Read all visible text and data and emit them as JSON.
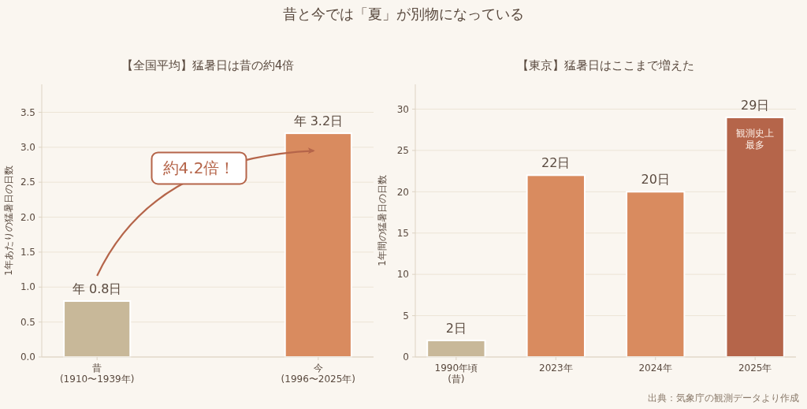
{
  "chart_data": [
    {
      "type": "bar",
      "title": "昔と今では「夏」が別物になっている",
      "subtitle": "【全国平均】猛暑日は昔の約4倍",
      "ylabel": "1年あたりの猛暑日の日数",
      "categories": [
        "昔\n(1910〜1939年)",
        "今\n(1996〜2025年)"
      ],
      "values": [
        0.8,
        3.2
      ],
      "colors": [
        "#c8b899",
        "#d98b5f"
      ],
      "value_labels": [
        "年 0.8日",
        "年 3.2日"
      ],
      "ylim": [
        0,
        3.9
      ],
      "yticks": [
        {
          "value": 0,
          "label": "0.0"
        },
        0.5,
        {
          "value": 1,
          "label": "1.0"
        },
        1.5,
        {
          "value": 2,
          "label": "2.0"
        },
        2.5,
        {
          "value": 3,
          "label": "3.0"
        },
        3.5
      ],
      "grid": "y",
      "annotations": [
        "約4.2倍！"
      ]
    },
    {
      "type": "bar",
      "title": "【東京】猛暑日はここまで増えた",
      "ylabel": "1年間の猛暑日の日数",
      "categories": [
        "1990年頃\n(昔)",
        "2023年",
        "2024年",
        "2025年"
      ],
      "values": [
        2,
        22,
        20,
        29
      ],
      "colors": [
        "#c8b899",
        "#d98b5f",
        "#d98b5f",
        "#b5654a"
      ],
      "value_labels": [
        "2日",
        "22日",
        "20日",
        "29日"
      ],
      "ylim": [
        0,
        33
      ],
      "yticks": [
        0,
        5,
        10,
        15,
        20,
        25,
        30
      ],
      "grid": "y",
      "annotations": [
        "観測史上最多",
        "出典：気象庁の観測データより作成"
      ]
    }
  ]
}
